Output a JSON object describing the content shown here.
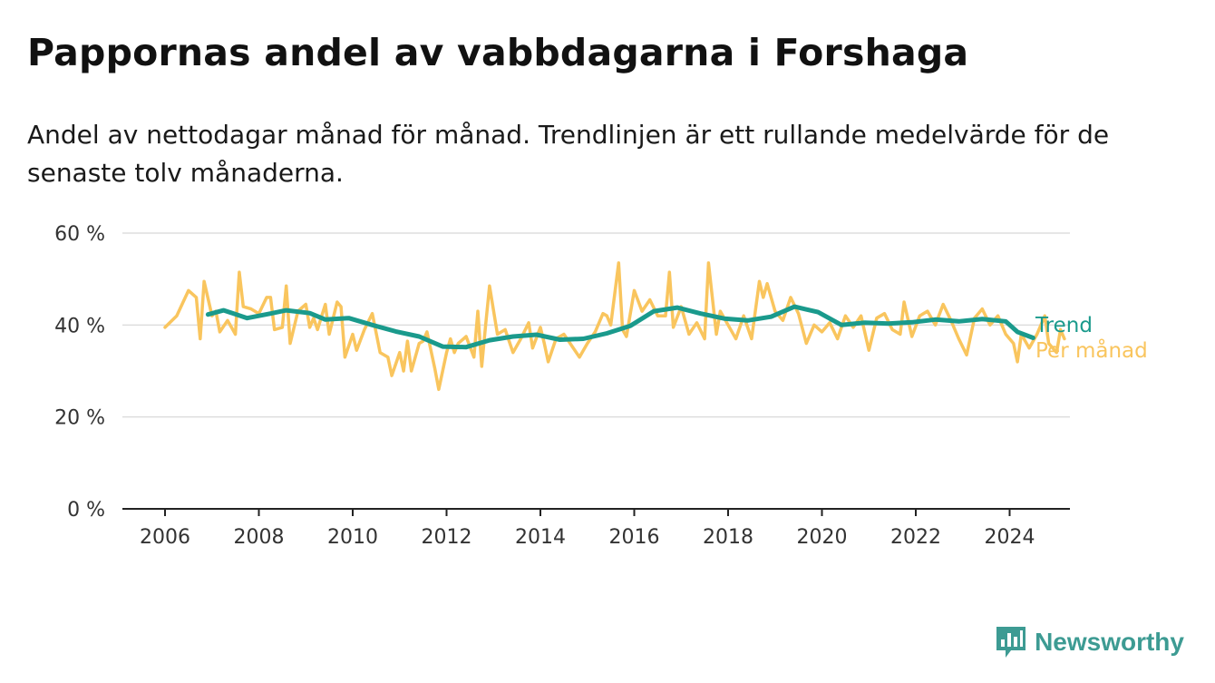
{
  "header": {
    "title": "Pappornas andel av vabbdagarna i Forshaga",
    "subtitle": "Andel av nettodagar månad för månad. Trendlinjen är ett rullande medelvärde för de senaste tolv månaderna."
  },
  "brand": {
    "name": "Newsworthy",
    "icon": "newsworthy-logo-icon",
    "color": "#3d9b93"
  },
  "chart_data": {
    "type": "line",
    "x_tick_labels": [
      "2006",
      "2008",
      "2010",
      "2012",
      "2014",
      "2016",
      "2018",
      "2020",
      "2022",
      "2024"
    ],
    "y_tick_labels": [
      "0 %",
      "20 %",
      "40 %",
      "60 %"
    ],
    "ylim": [
      0,
      60
    ],
    "xlim": [
      "2005-01",
      "2025-03"
    ],
    "grid": "horizontal",
    "legend_placement": "right end of lines",
    "series": [
      {
        "name": "Trend",
        "color": "#1a9a8c",
        "points": [
          [
            "2006-12",
            42.3
          ],
          [
            "2007-04",
            43.2
          ],
          [
            "2007-10",
            41.5
          ],
          [
            "2008-04",
            42.5
          ],
          [
            "2008-08",
            43.2
          ],
          [
            "2009-02",
            42.6
          ],
          [
            "2009-06",
            41.2
          ],
          [
            "2009-12",
            41.5
          ],
          [
            "2010-06",
            40.0
          ],
          [
            "2010-12",
            38.6
          ],
          [
            "2011-06",
            37.5
          ],
          [
            "2011-12",
            35.3
          ],
          [
            "2012-06",
            35.2
          ],
          [
            "2012-12",
            36.7
          ],
          [
            "2013-06",
            37.5
          ],
          [
            "2013-12",
            37.9
          ],
          [
            "2014-06",
            36.8
          ],
          [
            "2014-12",
            37.0
          ],
          [
            "2015-06",
            38.2
          ],
          [
            "2015-12",
            39.8
          ],
          [
            "2016-06",
            43.0
          ],
          [
            "2016-12",
            43.8
          ],
          [
            "2017-06",
            42.5
          ],
          [
            "2017-12",
            41.4
          ],
          [
            "2018-06",
            41.0
          ],
          [
            "2018-12",
            41.8
          ],
          [
            "2019-06",
            44.0
          ],
          [
            "2019-12",
            42.8
          ],
          [
            "2020-06",
            40.0
          ],
          [
            "2020-12",
            40.5
          ],
          [
            "2021-06",
            40.3
          ],
          [
            "2021-12",
            40.6
          ],
          [
            "2022-06",
            41.2
          ],
          [
            "2022-12",
            40.8
          ],
          [
            "2023-06",
            41.3
          ],
          [
            "2023-12",
            40.8
          ],
          [
            "2024-03",
            38.5
          ],
          [
            "2024-07",
            37.2
          ]
        ]
      },
      {
        "name": "Per månad",
        "color": "#f9c55e",
        "points": [
          [
            "2006-01",
            39.5
          ],
          [
            "2006-04",
            42
          ],
          [
            "2006-07",
            47.5
          ],
          [
            "2006-09",
            46
          ],
          [
            "2006-10",
            37
          ],
          [
            "2006-11",
            49.5
          ],
          [
            "2007-01",
            42
          ],
          [
            "2007-02",
            43
          ],
          [
            "2007-03",
            38.5
          ],
          [
            "2007-05",
            41
          ],
          [
            "2007-07",
            38
          ],
          [
            "2007-08",
            51.5
          ],
          [
            "2007-09",
            44
          ],
          [
            "2007-11",
            43.5
          ],
          [
            "2008-01",
            42.5
          ],
          [
            "2008-03",
            46
          ],
          [
            "2008-04",
            46
          ],
          [
            "2008-05",
            39
          ],
          [
            "2008-07",
            39.5
          ],
          [
            "2008-08",
            48.5
          ],
          [
            "2008-09",
            36
          ],
          [
            "2008-11",
            43
          ],
          [
            "2009-01",
            44.5
          ],
          [
            "2009-02",
            39.5
          ],
          [
            "2009-03",
            41.5
          ],
          [
            "2009-04",
            39
          ],
          [
            "2009-06",
            44.5
          ],
          [
            "2009-07",
            38
          ],
          [
            "2009-09",
            45
          ],
          [
            "2009-10",
            44
          ],
          [
            "2009-11",
            33
          ],
          [
            "2010-01",
            38
          ],
          [
            "2010-02",
            34.5
          ],
          [
            "2010-04",
            39
          ],
          [
            "2010-06",
            42.5
          ],
          [
            "2010-08",
            34
          ],
          [
            "2010-10",
            33
          ],
          [
            "2010-11",
            29
          ],
          [
            "2011-01",
            34
          ],
          [
            "2011-02",
            30
          ],
          [
            "2011-03",
            36.5
          ],
          [
            "2011-04",
            30
          ],
          [
            "2011-06",
            36
          ],
          [
            "2011-07",
            36.5
          ],
          [
            "2011-08",
            38.5
          ],
          [
            "2011-10",
            30.5
          ],
          [
            "2011-11",
            26
          ],
          [
            "2012-01",
            34
          ],
          [
            "2012-02",
            37
          ],
          [
            "2012-03",
            34
          ],
          [
            "2012-04",
            36
          ],
          [
            "2012-06",
            37.5
          ],
          [
            "2012-08",
            33
          ],
          [
            "2012-09",
            43
          ],
          [
            "2012-10",
            31
          ],
          [
            "2012-11",
            40
          ],
          [
            "2012-12",
            48.5
          ],
          [
            "2013-02",
            38
          ],
          [
            "2013-04",
            39
          ],
          [
            "2013-06",
            34
          ],
          [
            "2013-08",
            37
          ],
          [
            "2013-10",
            40.5
          ],
          [
            "2013-11",
            35
          ],
          [
            "2014-01",
            39.5
          ],
          [
            "2014-02",
            36
          ],
          [
            "2014-03",
            32
          ],
          [
            "2014-05",
            37
          ],
          [
            "2014-07",
            38
          ],
          [
            "2014-09",
            35.5
          ],
          [
            "2014-11",
            33
          ],
          [
            "2015-01",
            36
          ],
          [
            "2015-03",
            38.5
          ],
          [
            "2015-05",
            42.5
          ],
          [
            "2015-06",
            42
          ],
          [
            "2015-07",
            40
          ],
          [
            "2015-09",
            53.5
          ],
          [
            "2015-10",
            39
          ],
          [
            "2015-11",
            37.5
          ],
          [
            "2016-01",
            47.5
          ],
          [
            "2016-03",
            43
          ],
          [
            "2016-05",
            45.5
          ],
          [
            "2016-07",
            42
          ],
          [
            "2016-09",
            42
          ],
          [
            "2016-10",
            51.5
          ],
          [
            "2016-11",
            39.5
          ],
          [
            "2017-01",
            44
          ],
          [
            "2017-03",
            38
          ],
          [
            "2017-05",
            40.5
          ],
          [
            "2017-07",
            37
          ],
          [
            "2017-08",
            53.5
          ],
          [
            "2017-10",
            38
          ],
          [
            "2017-11",
            43
          ],
          [
            "2018-01",
            40
          ],
          [
            "2018-03",
            37
          ],
          [
            "2018-05",
            42
          ],
          [
            "2018-07",
            37
          ],
          [
            "2018-09",
            49.5
          ],
          [
            "2018-10",
            46
          ],
          [
            "2018-11",
            49
          ],
          [
            "2019-01",
            43
          ],
          [
            "2019-03",
            41
          ],
          [
            "2019-05",
            46
          ],
          [
            "2019-07",
            42.5
          ],
          [
            "2019-09",
            36
          ],
          [
            "2019-11",
            40
          ],
          [
            "2020-01",
            38.5
          ],
          [
            "2020-03",
            40.5
          ],
          [
            "2020-05",
            37
          ],
          [
            "2020-07",
            42
          ],
          [
            "2020-09",
            39.5
          ],
          [
            "2020-11",
            42
          ],
          [
            "2021-01",
            34.5
          ],
          [
            "2021-03",
            41.5
          ],
          [
            "2021-05",
            42.5
          ],
          [
            "2021-07",
            39
          ],
          [
            "2021-09",
            38
          ],
          [
            "2021-10",
            45
          ],
          [
            "2021-12",
            37.5
          ],
          [
            "2022-02",
            42
          ],
          [
            "2022-04",
            43
          ],
          [
            "2022-06",
            40
          ],
          [
            "2022-08",
            44.5
          ],
          [
            "2022-10",
            41
          ],
          [
            "2022-12",
            37
          ],
          [
            "2023-02",
            33.5
          ],
          [
            "2023-04",
            41.5
          ],
          [
            "2023-06",
            43.5
          ],
          [
            "2023-08",
            40
          ],
          [
            "2023-10",
            42
          ],
          [
            "2023-12",
            38
          ],
          [
            "2024-02",
            36
          ],
          [
            "2024-03",
            32
          ],
          [
            "2024-04",
            38
          ],
          [
            "2024-06",
            35
          ],
          [
            "2024-08",
            38
          ],
          [
            "2024-10",
            42
          ],
          [
            "2024-11",
            36
          ],
          [
            "2025-01",
            34
          ],
          [
            "2025-02",
            39
          ],
          [
            "2025-03",
            37
          ]
        ]
      }
    ]
  }
}
